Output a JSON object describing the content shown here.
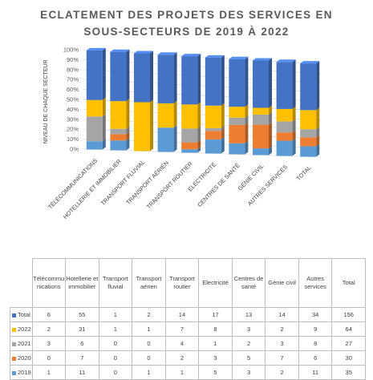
{
  "chart_data": {
    "type": "bar",
    "stacked": "percent",
    "style": "3d-column",
    "title_lines": [
      "ECLATEMENT DES PROJETS DES SERVICES EN",
      "SOUS-SECTEURS DE 2019 À 2022"
    ],
    "ylabel": "NIVEAU DE CHAQUE SECTEUR",
    "ylim": [
      0,
      100
    ],
    "yticks": [
      "0%",
      "10%",
      "20%",
      "30%",
      "40%",
      "50%",
      "60%",
      "70%",
      "80%",
      "90%",
      "100%"
    ],
    "grid": true,
    "categories": [
      "Télécommunications",
      "Hotellerie et immobilier",
      "Transport fluvial",
      "Transport aérien",
      "Transport routier",
      "Electricité",
      "Centres de santé",
      "Génie civil",
      "Autres services",
      "Total"
    ],
    "axis_labels": [
      "TÉLÉCOMMUNICATIONS",
      "HOTELLERIE ET IMMOBILIER",
      "TRANSPORT FLUVIAL",
      "TRANSPORT AÉRIEN",
      "TRANSPORT ROUTIER",
      "ELECTRICITÉ",
      "CENTRES DE SANTÉ",
      "GÉNIE CIVIL",
      "AUTRES SERVICES",
      "TOTAL"
    ],
    "table_headers": [
      "Télécommu nications",
      "Hotellerie et immobilier",
      "Transport fluvial",
      "Transport aérien",
      "Transport routier",
      "Electricité",
      "Centres de santé",
      "Génie civil",
      "Autres services",
      "Total"
    ],
    "series": [
      {
        "name": "2019",
        "color": "#5b9bd5",
        "values": [
          1,
          11,
          0,
          1,
          1,
          5,
          3,
          2,
          11,
          35
        ]
      },
      {
        "name": "2020",
        "color": "#ed7d31",
        "values": [
          0,
          7,
          0,
          0,
          2,
          3,
          5,
          7,
          6,
          30
        ]
      },
      {
        "name": "2021",
        "color": "#a5a5a5",
        "values": [
          3,
          6,
          0,
          0,
          4,
          1,
          2,
          3,
          8,
          27
        ]
      },
      {
        "name": "2022",
        "color": "#ffc000",
        "values": [
          2,
          31,
          1,
          1,
          7,
          8,
          3,
          2,
          9,
          64
        ]
      },
      {
        "name": "Total",
        "color": "#4472c4",
        "values": [
          6,
          55,
          1,
          2,
          14,
          17,
          13,
          14,
          34,
          156
        ]
      }
    ],
    "table_row_order": [
      "Total",
      "2022",
      "2021",
      "2020",
      "2019"
    ]
  }
}
